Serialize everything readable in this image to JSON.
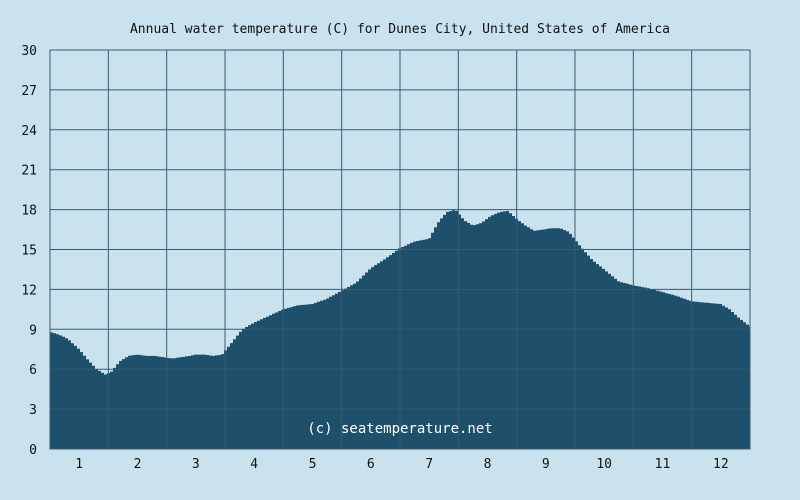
{
  "chart_data": {
    "type": "area",
    "title": "Annual water temperature (C) for Dunes City, United States of America",
    "xlabel": "",
    "ylabel": "",
    "ylim": [
      0,
      30
    ],
    "xlim": [
      0.5,
      12.5
    ],
    "y_ticks": [
      0,
      3,
      6,
      9,
      12,
      15,
      18,
      21,
      24,
      27,
      30
    ],
    "x_ticks": [
      1,
      2,
      3,
      4,
      5,
      6,
      7,
      8,
      9,
      10,
      11,
      12
    ],
    "grid": true,
    "x": [
      0.5,
      0.65,
      0.8,
      1.0,
      1.15,
      1.3,
      1.45,
      1.55,
      1.7,
      1.85,
      2.0,
      2.15,
      2.3,
      2.45,
      2.6,
      2.75,
      2.9,
      3.0,
      3.15,
      3.3,
      3.45,
      3.6,
      3.8,
      4.0,
      4.25,
      4.5,
      4.75,
      5.0,
      5.25,
      5.5,
      5.75,
      6.0,
      6.25,
      6.5,
      6.75,
      7.0,
      7.15,
      7.3,
      7.45,
      7.6,
      7.75,
      7.9,
      8.05,
      8.2,
      8.35,
      8.5,
      8.65,
      8.8,
      8.95,
      9.1,
      9.25,
      9.4,
      9.6,
      9.8,
      10.0,
      10.25,
      10.5,
      10.75,
      11.0,
      11.25,
      11.5,
      11.75,
      12.0,
      12.15,
      12.3,
      12.5
    ],
    "series": [
      {
        "values": [
          8.8,
          8.6,
          8.3,
          7.5,
          6.7,
          6.0,
          5.6,
          5.8,
          6.6,
          7.0,
          7.1,
          7.0,
          7.0,
          6.9,
          6.8,
          6.9,
          7.0,
          7.1,
          7.1,
          7.0,
          7.1,
          7.9,
          9.0,
          9.5,
          10.0,
          10.5,
          10.8,
          10.9,
          11.3,
          11.9,
          12.5,
          13.6,
          14.3,
          15.1,
          15.6,
          15.8,
          17.0,
          17.8,
          18.0,
          17.2,
          16.8,
          17.0,
          17.5,
          17.8,
          17.9,
          17.3,
          16.8,
          16.4,
          16.5,
          16.6,
          16.6,
          16.3,
          15.2,
          14.2,
          13.5,
          12.6,
          12.3,
          12.1,
          11.8,
          11.5,
          11.1,
          11.0,
          10.9,
          10.5,
          9.9,
          9.2
        ]
      }
    ],
    "watermark": "(c) seatemperature.net",
    "colors": {
      "background": "#cae2ee",
      "area_fill": "#1e4f6b",
      "grid": "#395a72",
      "text": "#111111",
      "watermark": "#ffffff"
    }
  }
}
